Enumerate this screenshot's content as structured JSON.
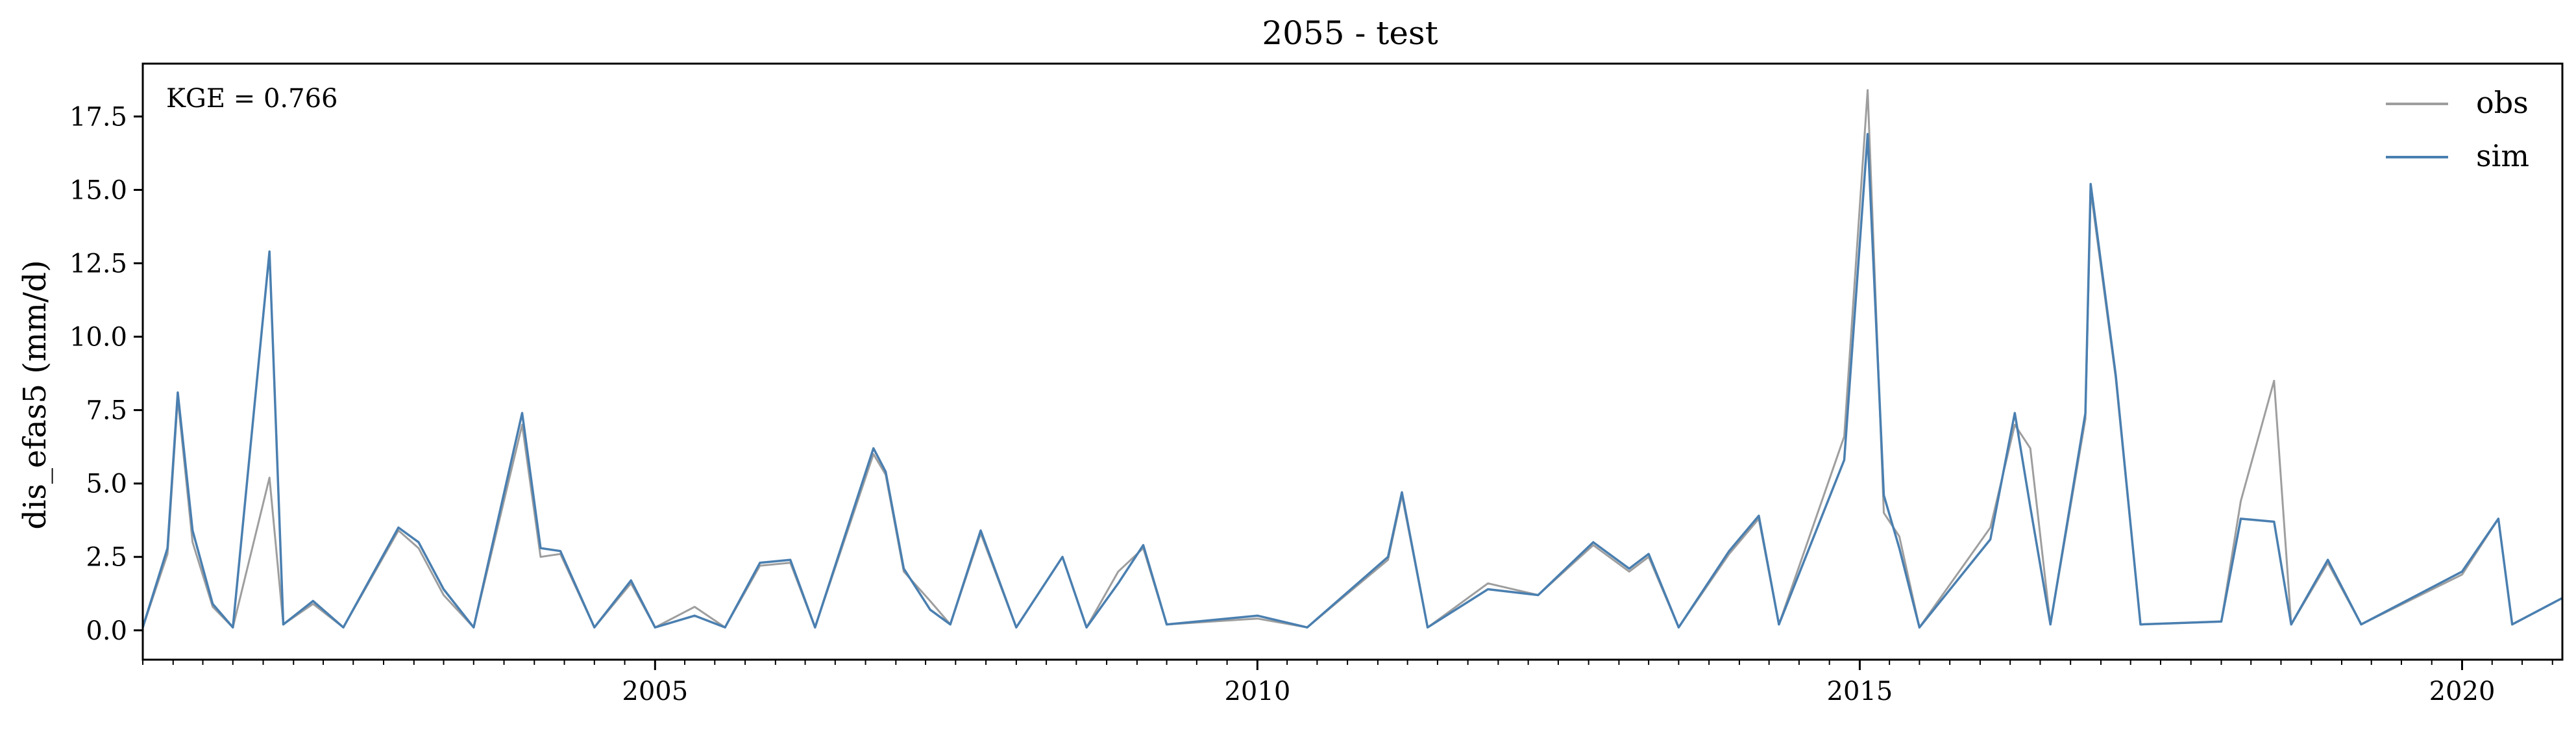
{
  "chart_data": {
    "type": "line",
    "title": "2055 - test",
    "xlabel": "",
    "ylabel": "dis_efas5 (mm/d)",
    "x_axis": {
      "type": "date",
      "range": [
        "2000-10-01",
        "2020-10-31"
      ],
      "major_ticks": [
        "2005",
        "2010",
        "2015",
        "2020"
      ]
    },
    "ylim": [
      -1.0,
      19.3
    ],
    "yticks": [
      "0.0",
      "2.5",
      "5.0",
      "7.5",
      "10.0",
      "12.5",
      "15.0",
      "17.5"
    ],
    "grid": false,
    "legend": {
      "placement": "top-right",
      "entries": [
        "obs",
        "sim"
      ]
    },
    "annotation": "KGE = 0.766",
    "series": [
      {
        "name": "obs",
        "color": "#9e9e9e",
        "points": [
          [
            "2000-10-01",
            0.1
          ],
          [
            "2000-12-15",
            2.6
          ],
          [
            "2001-01-15",
            7.9
          ],
          [
            "2001-03-01",
            3.0
          ],
          [
            "2001-05-01",
            0.8
          ],
          [
            "2001-07-01",
            0.1
          ],
          [
            "2001-10-20",
            5.2
          ],
          [
            "2001-12-01",
            0.2
          ],
          [
            "2002-03-01",
            0.9
          ],
          [
            "2002-06-01",
            0.1
          ],
          [
            "2002-11-15",
            3.4
          ],
          [
            "2003-01-15",
            2.8
          ],
          [
            "2003-04-01",
            1.2
          ],
          [
            "2003-07-01",
            0.1
          ],
          [
            "2003-11-25",
            7.0
          ],
          [
            "2004-01-20",
            2.5
          ],
          [
            "2004-03-20",
            2.6
          ],
          [
            "2004-07-01",
            0.1
          ],
          [
            "2004-10-20",
            1.6
          ],
          [
            "2005-01-01",
            0.1
          ],
          [
            "2005-05-01",
            0.8
          ],
          [
            "2005-08-01",
            0.1
          ],
          [
            "2005-11-15",
            2.2
          ],
          [
            "2006-02-15",
            2.3
          ],
          [
            "2006-05-01",
            0.1
          ],
          [
            "2006-10-25",
            6.0
          ],
          [
            "2006-12-01",
            5.3
          ],
          [
            "2007-01-25",
            2.0
          ],
          [
            "2007-04-15",
            1.0
          ],
          [
            "2007-06-15",
            0.2
          ],
          [
            "2007-09-15",
            3.3
          ],
          [
            "2008-01-01",
            0.1
          ],
          [
            "2008-05-20",
            2.5
          ],
          [
            "2008-08-01",
            0.1
          ],
          [
            "2008-11-05",
            2.0
          ],
          [
            "2009-01-20",
            2.8
          ],
          [
            "2009-04-01",
            0.2
          ],
          [
            "2010-01-01",
            0.4
          ],
          [
            "2010-06-01",
            0.1
          ],
          [
            "2011-02-01",
            2.4
          ],
          [
            "2011-03-15",
            4.6
          ],
          [
            "2011-06-01",
            0.1
          ],
          [
            "2011-12-01",
            1.6
          ],
          [
            "2012-05-01",
            1.2
          ],
          [
            "2012-10-15",
            2.9
          ],
          [
            "2013-02-01",
            2.0
          ],
          [
            "2013-04-01",
            2.5
          ],
          [
            "2013-07-01",
            0.1
          ],
          [
            "2013-12-01",
            2.6
          ],
          [
            "2014-03-01",
            3.8
          ],
          [
            "2014-05-01",
            0.2
          ],
          [
            "2014-11-15",
            6.6
          ],
          [
            "2015-01-25",
            18.4
          ],
          [
            "2015-03-15",
            4.0
          ],
          [
            "2015-05-01",
            3.2
          ],
          [
            "2015-07-01",
            0.1
          ],
          [
            "2016-02-01",
            3.5
          ],
          [
            "2016-04-15",
            7.0
          ],
          [
            "2016-06-01",
            6.2
          ],
          [
            "2016-08-01",
            0.2
          ],
          [
            "2016-11-15",
            7.2
          ],
          [
            "2016-12-01",
            15.0
          ],
          [
            "2017-02-15",
            8.6
          ],
          [
            "2017-05-01",
            0.2
          ],
          [
            "2018-01-01",
            0.3
          ],
          [
            "2018-03-01",
            4.4
          ],
          [
            "2018-06-10",
            8.5
          ],
          [
            "2018-08-01",
            0.2
          ],
          [
            "2018-11-20",
            2.3
          ],
          [
            "2019-03-01",
            0.2
          ],
          [
            "2020-01-01",
            1.9
          ],
          [
            "2020-04-20",
            3.8
          ],
          [
            "2020-06-01",
            0.2
          ],
          [
            "2020-10-31",
            1.1
          ]
        ]
      },
      {
        "name": "sim",
        "color": "#4a7fb0",
        "points": [
          [
            "2000-10-01",
            0.1
          ],
          [
            "2000-12-15",
            2.8
          ],
          [
            "2001-01-15",
            8.1
          ],
          [
            "2001-03-01",
            3.4
          ],
          [
            "2001-05-01",
            0.9
          ],
          [
            "2001-07-01",
            0.1
          ],
          [
            "2001-10-20",
            12.9
          ],
          [
            "2001-12-01",
            0.2
          ],
          [
            "2002-03-01",
            1.0
          ],
          [
            "2002-06-01",
            0.1
          ],
          [
            "2002-11-15",
            3.5
          ],
          [
            "2003-01-15",
            3.0
          ],
          [
            "2003-04-01",
            1.4
          ],
          [
            "2003-07-01",
            0.1
          ],
          [
            "2003-11-25",
            7.4
          ],
          [
            "2004-01-20",
            2.8
          ],
          [
            "2004-03-20",
            2.7
          ],
          [
            "2004-07-01",
            0.1
          ],
          [
            "2004-10-20",
            1.7
          ],
          [
            "2005-01-01",
            0.1
          ],
          [
            "2005-05-01",
            0.5
          ],
          [
            "2005-08-01",
            0.1
          ],
          [
            "2005-11-15",
            2.3
          ],
          [
            "2006-02-15",
            2.4
          ],
          [
            "2006-05-01",
            0.1
          ],
          [
            "2006-10-25",
            6.2
          ],
          [
            "2006-12-01",
            5.4
          ],
          [
            "2007-01-25",
            2.1
          ],
          [
            "2007-04-15",
            0.7
          ],
          [
            "2007-06-15",
            0.2
          ],
          [
            "2007-09-15",
            3.4
          ],
          [
            "2008-01-01",
            0.1
          ],
          [
            "2008-05-20",
            2.5
          ],
          [
            "2008-08-01",
            0.1
          ],
          [
            "2008-11-05",
            1.6
          ],
          [
            "2009-01-20",
            2.9
          ],
          [
            "2009-04-01",
            0.2
          ],
          [
            "2010-01-01",
            0.5
          ],
          [
            "2010-06-01",
            0.1
          ],
          [
            "2011-02-01",
            2.5
          ],
          [
            "2011-03-15",
            4.7
          ],
          [
            "2011-06-01",
            0.1
          ],
          [
            "2011-12-01",
            1.4
          ],
          [
            "2012-05-01",
            1.2
          ],
          [
            "2012-10-15",
            3.0
          ],
          [
            "2013-02-01",
            2.1
          ],
          [
            "2013-04-01",
            2.6
          ],
          [
            "2013-07-01",
            0.1
          ],
          [
            "2013-12-01",
            2.7
          ],
          [
            "2014-03-01",
            3.9
          ],
          [
            "2014-05-01",
            0.2
          ],
          [
            "2014-11-15",
            5.8
          ],
          [
            "2015-01-25",
            16.9
          ],
          [
            "2015-03-15",
            4.6
          ],
          [
            "2015-05-01",
            2.8
          ],
          [
            "2015-07-01",
            0.1
          ],
          [
            "2016-02-01",
            3.1
          ],
          [
            "2016-04-15",
            7.4
          ],
          [
            "2016-06-01",
            4.2
          ],
          [
            "2016-08-01",
            0.2
          ],
          [
            "2016-11-15",
            7.4
          ],
          [
            "2016-12-01",
            15.2
          ],
          [
            "2017-02-15",
            8.7
          ],
          [
            "2017-05-01",
            0.2
          ],
          [
            "2018-01-01",
            0.3
          ],
          [
            "2018-03-01",
            3.8
          ],
          [
            "2018-06-10",
            3.7
          ],
          [
            "2018-08-01",
            0.2
          ],
          [
            "2018-11-20",
            2.4
          ],
          [
            "2019-03-01",
            0.2
          ],
          [
            "2020-01-01",
            2.0
          ],
          [
            "2020-04-20",
            3.8
          ],
          [
            "2020-06-01",
            0.2
          ],
          [
            "2020-10-31",
            1.1
          ]
        ]
      }
    ]
  }
}
